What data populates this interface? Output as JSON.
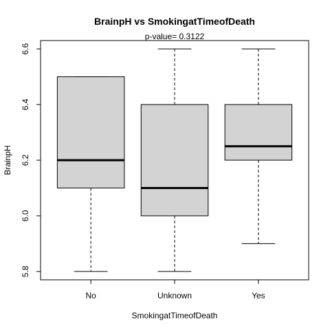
{
  "chart_data": {
    "type": "boxplot",
    "title": "BrainpH  vs  SmokingatTimeofDeath",
    "subtitle": "p-value= 0.3122",
    "xlabel": "SmokingatTimeofDeath",
    "ylabel": "BrainpH",
    "ylim": [
      5.77,
      6.63
    ],
    "yticks": [
      5.8,
      6.0,
      6.2,
      6.4,
      6.6
    ],
    "ytick_labels": [
      "5.8",
      "6.0",
      "6.2",
      "6.4",
      "6.6"
    ],
    "categories": [
      "No",
      "Unknown",
      "Yes"
    ],
    "boxes": [
      {
        "category": "No",
        "min": 5.8,
        "q1": 6.1,
        "median": 6.2,
        "q3": 6.5,
        "max": 6.5
      },
      {
        "category": "Unknown",
        "min": 5.8,
        "q1": 6.0,
        "median": 6.1,
        "q3": 6.4,
        "max": 6.6
      },
      {
        "category": "Yes",
        "min": 5.9,
        "q1": 6.2,
        "median": 6.25,
        "q3": 6.4,
        "max": 6.6
      }
    ],
    "box_fill": "#d3d3d3",
    "grid": false
  }
}
